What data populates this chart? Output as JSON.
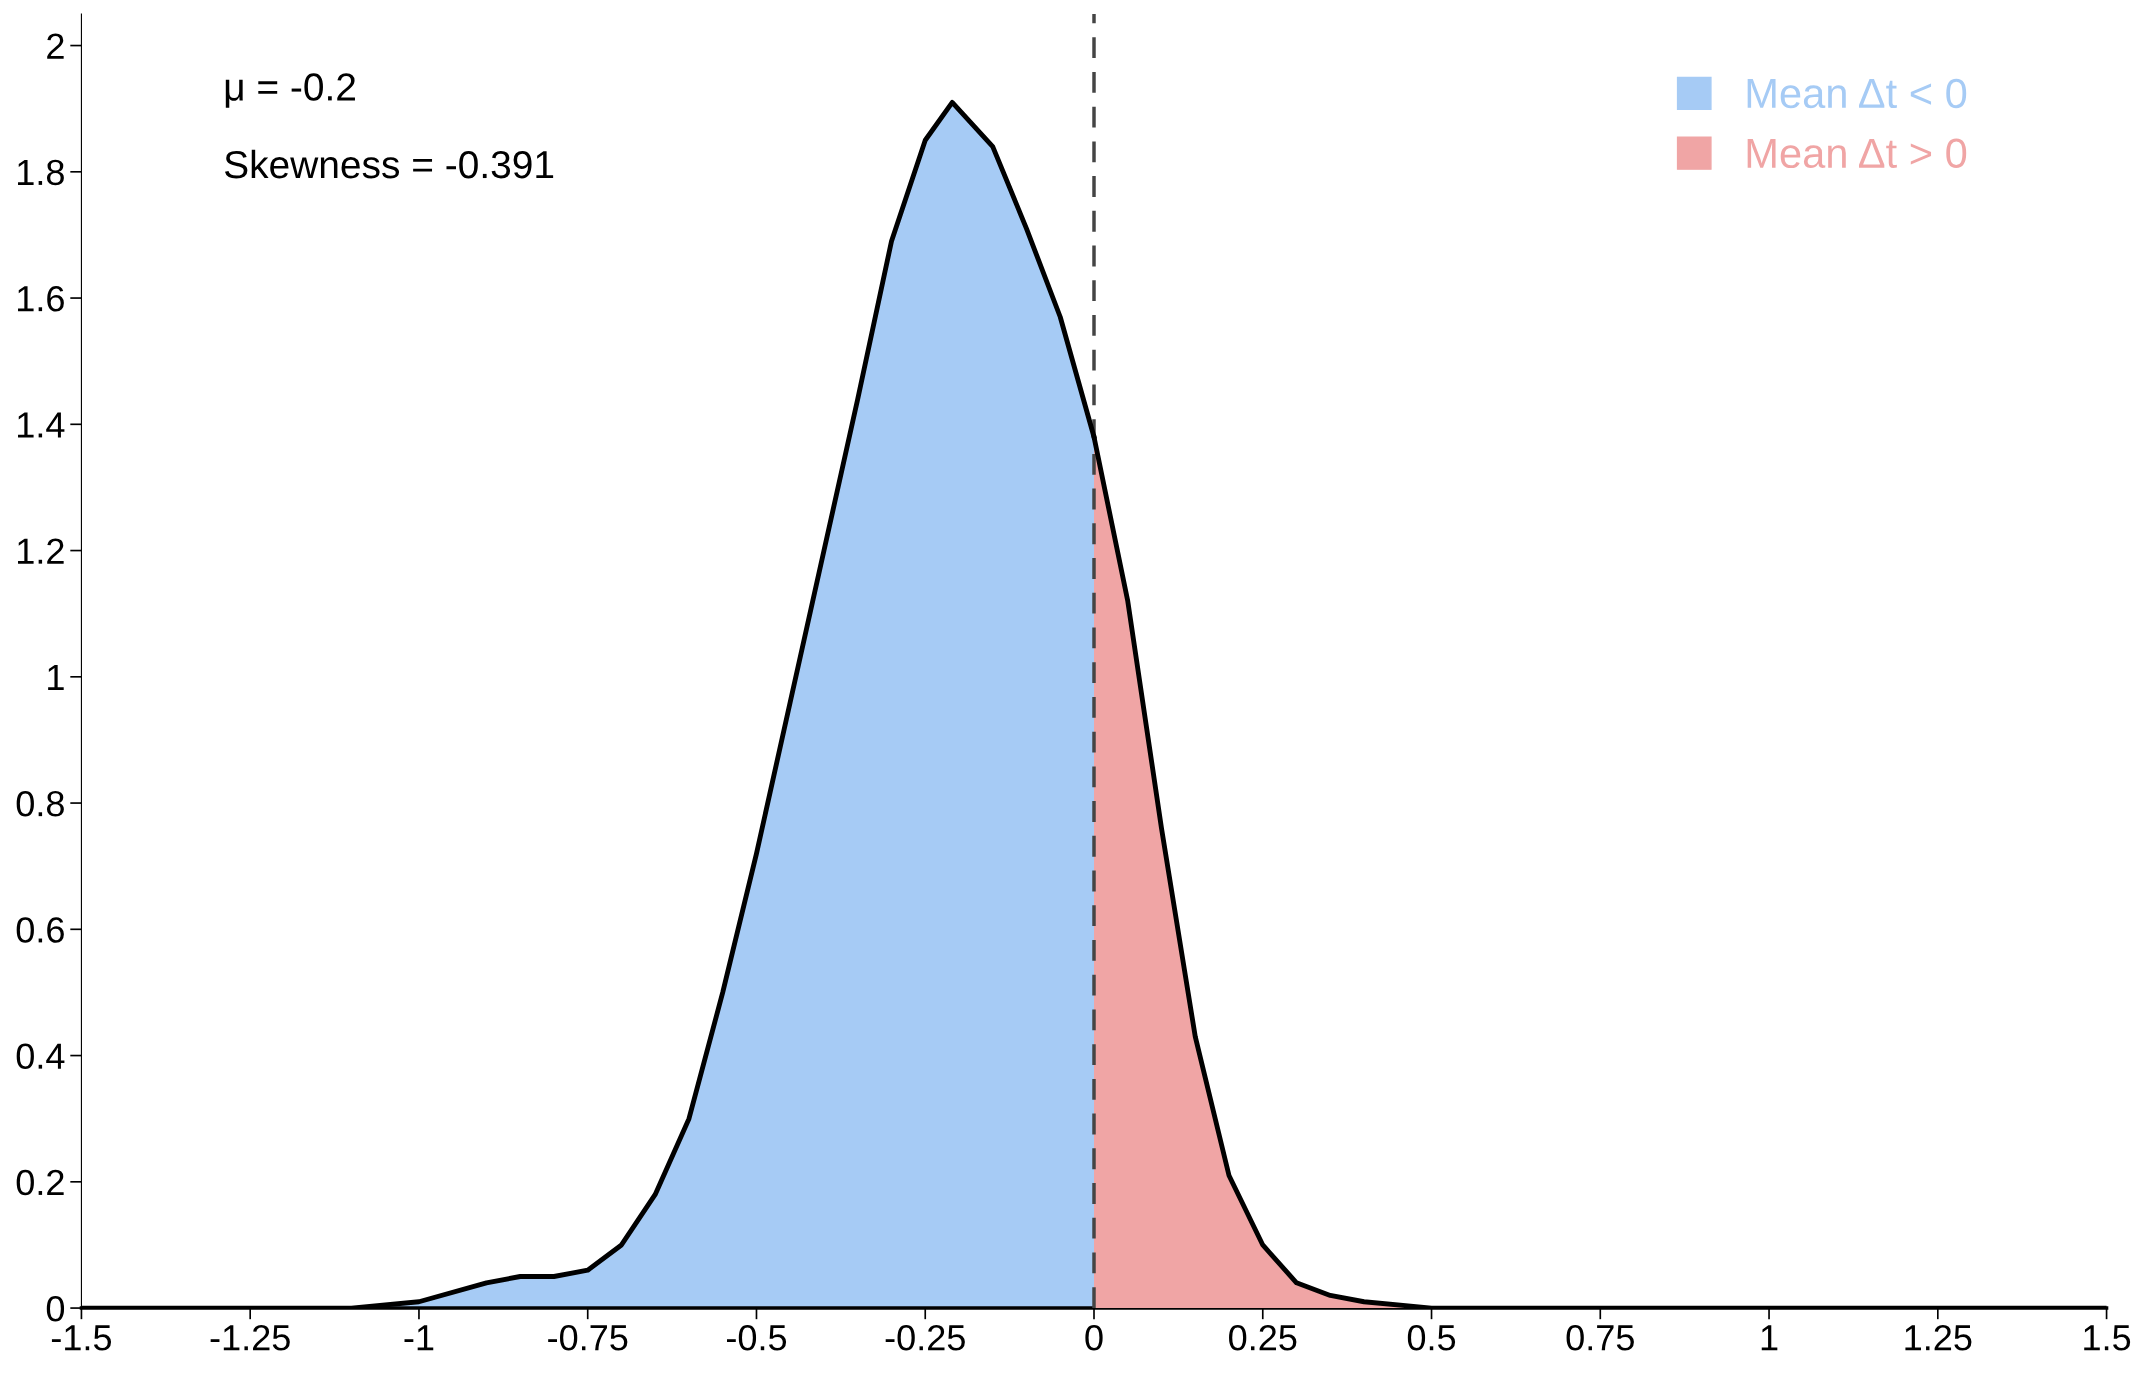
{
  "chart_data": {
    "type": "area",
    "series": [
      {
        "name": "Mean Δt < 0",
        "color": "#a6cbf5",
        "x": [
          -1.5,
          -1.25,
          -1.1,
          -1.0,
          -0.9,
          -0.85,
          -0.8,
          -0.75,
          -0.7,
          -0.65,
          -0.6,
          -0.55,
          -0.5,
          -0.45,
          -0.4,
          -0.35,
          -0.3,
          -0.25,
          -0.21,
          -0.15,
          -0.1,
          -0.05,
          0
        ],
        "values": [
          0,
          0,
          0,
          0.01,
          0.04,
          0.05,
          0.05,
          0.06,
          0.1,
          0.18,
          0.3,
          0.5,
          0.72,
          0.96,
          1.2,
          1.44,
          1.69,
          1.85,
          1.91,
          1.84,
          1.71,
          1.57,
          1.38
        ]
      },
      {
        "name": "Mean Δt > 0",
        "color": "#f0a5a5",
        "x": [
          0,
          0.05,
          0.1,
          0.15,
          0.2,
          0.25,
          0.3,
          0.35,
          0.4,
          0.5,
          0.75,
          1.0,
          1.25,
          1.5
        ],
        "values": [
          1.38,
          1.12,
          0.76,
          0.43,
          0.21,
          0.1,
          0.04,
          0.02,
          0.01,
          0,
          0,
          0,
          0,
          0
        ]
      }
    ],
    "xlim": [
      -1.5,
      1.5
    ],
    "xticks": [
      -1.5,
      -1.25,
      -1,
      -0.75,
      -0.5,
      -0.25,
      0,
      0.25,
      0.5,
      0.75,
      1,
      1.25,
      1.5
    ],
    "ylim": [
      0,
      2.05
    ],
    "yticks": [
      0,
      0.2,
      0.4,
      0.6,
      0.8,
      1,
      1.2,
      1.4,
      1.6,
      1.8,
      2
    ],
    "ref_lines": [
      {
        "axis": "x",
        "value": 0,
        "color": "#444444",
        "line_style": "dashed"
      }
    ],
    "annotations": [
      "μ = -0.2",
      "Skewness = -0.391"
    ],
    "legend": "top right",
    "grid": false
  }
}
